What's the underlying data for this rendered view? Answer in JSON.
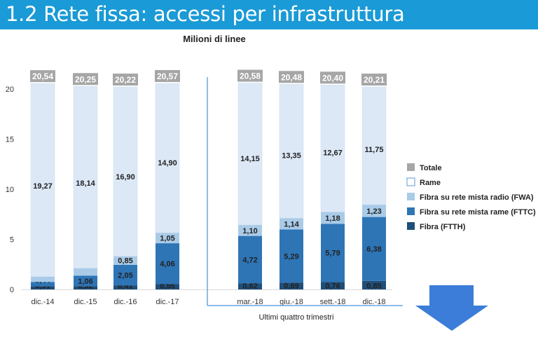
{
  "header": {
    "title": "1.2 Rete fissa: accessi per infrastruttura"
  },
  "chart_data": {
    "type": "bar",
    "stacked": true,
    "title": "Milioni di linee",
    "xlabel": "",
    "ylabel": "",
    "ylim": [
      0,
      20
    ],
    "yticks": [
      0,
      5,
      10,
      15,
      20
    ],
    "grid": false,
    "legend_position": "right",
    "categories": [
      "dic.-14",
      "dic.-15",
      "dic.-16",
      "dic.-17",
      "mar.-18",
      "giu.-18",
      "sett.-18",
      "dic.-18"
    ],
    "series": [
      {
        "name": "Fibra (FTTH)",
        "color": "#1f4e79",
        "values": [
          0.31,
          0.32,
          0.41,
          0.55,
          0.62,
          0.69,
          0.76,
          0.85
        ]
      },
      {
        "name": "Fibra su rete mista rame (FTTC)",
        "color": "#2e75b6",
        "values": [
          0.44,
          1.06,
          2.05,
          4.06,
          4.72,
          5.29,
          5.79,
          6.38
        ]
      },
      {
        "name": "Fibra su rete mista radio (FWA)",
        "color": "#a9cbe8",
        "values": [
          0.53,
          0.74,
          0.85,
          1.05,
          1.1,
          1.14,
          1.18,
          1.23
        ]
      },
      {
        "name": "Rame",
        "color": "#dce8f6",
        "values": [
          19.27,
          18.14,
          16.9,
          14.9,
          14.15,
          13.35,
          12.67,
          11.75
        ]
      }
    ],
    "totals": {
      "name": "Totale",
      "color": "#a6a6a6",
      "values": [
        "20,54",
        "20,25",
        "20,22",
        "20,57",
        "20,58",
        "20,48",
        "20,40",
        "20,21"
      ]
    },
    "annotations": {
      "bracket_label": "Ultimi quattro trimestri"
    }
  },
  "accent_colors": {
    "title_bar": "#1a9ad6",
    "bracket": "#4a90d9",
    "arrow": "#3b7dd8"
  },
  "icons": [
    "down-arrow-icon"
  ]
}
